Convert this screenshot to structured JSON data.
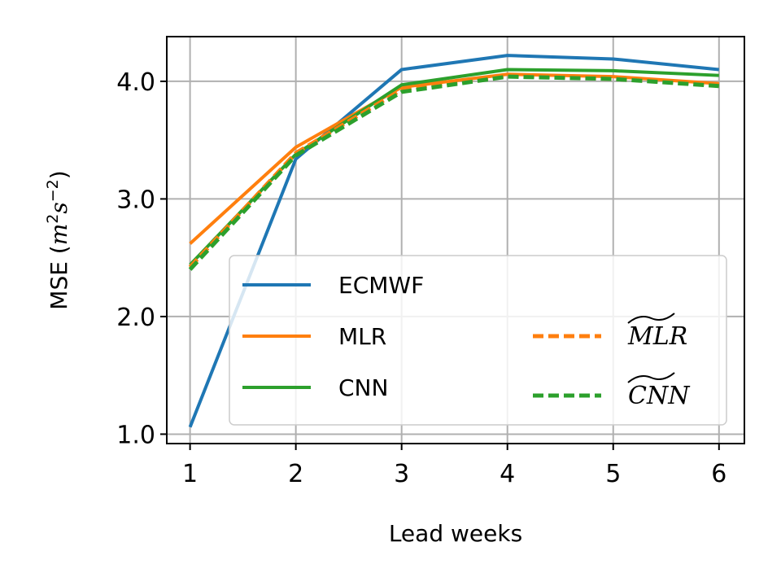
{
  "chart_data": {
    "type": "line",
    "xlabel": "Lead weeks",
    "ylabel": "MSE (m²s⁻²)",
    "ylabel_parts": {
      "prefix": "MSE (",
      "m": "m",
      "m_sup": "2",
      "s": "s",
      "s_sup": "−2",
      "suffix": ")"
    },
    "x": [
      1,
      2,
      3,
      4,
      5,
      6
    ],
    "xlim": [
      0.78,
      6.24
    ],
    "ylim": [
      0.92,
      4.38
    ],
    "xticks": [
      "1",
      "2",
      "3",
      "4",
      "5",
      "6"
    ],
    "yticks": [
      "1.0",
      "2.0",
      "3.0",
      "4.0"
    ],
    "ytick_values": [
      1.0,
      2.0,
      3.0,
      4.0
    ],
    "grid": true,
    "legend_position": "lower-right",
    "series": [
      {
        "name": "ECMWF",
        "color": "#1f77b4",
        "style": "solid",
        "values": [
          1.06,
          3.34,
          4.1,
          4.22,
          4.19,
          4.1
        ]
      },
      {
        "name": "MLR",
        "color": "#ff7f0e",
        "style": "solid",
        "values": [
          2.62,
          3.44,
          3.95,
          4.06,
          4.04,
          3.98
        ]
      },
      {
        "name": "CNN",
        "color": "#2ca02c",
        "style": "solid",
        "values": [
          2.44,
          3.38,
          3.97,
          4.1,
          4.09,
          4.05
        ]
      },
      {
        "name": "MLR",
        "color": "#ff7f0e",
        "style": "dashed",
        "tilde": true,
        "values": [
          2.42,
          3.39,
          3.93,
          4.05,
          4.02,
          3.97
        ]
      },
      {
        "name": "CNN",
        "color": "#2ca02c",
        "style": "dashed",
        "tilde": true,
        "values": [
          2.4,
          3.37,
          3.91,
          4.04,
          4.02,
          3.96
        ]
      }
    ]
  }
}
